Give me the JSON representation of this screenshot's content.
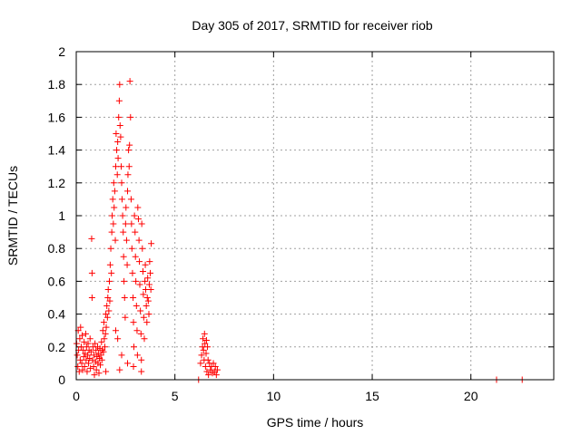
{
  "chart_data": {
    "type": "scatter",
    "title": "Day 305 of 2017, SRMTID for receiver riob",
    "xlabel": "GPS time / hours",
    "ylabel": "SRMTID / TECUs",
    "xlim": [
      0,
      24.2
    ],
    "ylim": [
      0,
      2
    ],
    "xticks": [
      0,
      5,
      10,
      15,
      20
    ],
    "xtick_labels": [
      "0",
      "5",
      "10",
      "15",
      "20"
    ],
    "yticks": [
      0,
      0.2,
      0.4,
      0.6,
      0.8,
      1,
      1.2,
      1.4,
      1.6,
      1.8,
      2
    ],
    "ytick_labels": [
      "0",
      "0.2",
      "0.4",
      "0.6",
      "0.8",
      "1",
      "1.2",
      "1.4",
      "1.6",
      "1.8",
      "2"
    ],
    "grid": true,
    "marker": "plus",
    "color": "#ff0000",
    "series": [
      {
        "name": "SRMTID",
        "points": [
          [
            0.02,
            0.22
          ],
          [
            0.05,
            0.15
          ],
          [
            0.08,
            0.08
          ],
          [
            0.1,
            0.3
          ],
          [
            0.12,
            0.18
          ],
          [
            0.15,
            0.05
          ],
          [
            0.18,
            0.25
          ],
          [
            0.2,
            0.12
          ],
          [
            0.22,
            0.32
          ],
          [
            0.25,
            0.2
          ],
          [
            0.28,
            0.1
          ],
          [
            0.3,
            0.27
          ],
          [
            0.32,
            0.06
          ],
          [
            0.35,
            0.18
          ],
          [
            0.38,
            0.14
          ],
          [
            0.4,
            0.23
          ],
          [
            0.42,
            0.08
          ],
          [
            0.45,
            0.16
          ],
          [
            0.48,
            0.28
          ],
          [
            0.5,
            0.12
          ],
          [
            0.52,
            0.2
          ],
          [
            0.55,
            0.05
          ],
          [
            0.58,
            0.15
          ],
          [
            0.6,
            0.22
          ],
          [
            0.62,
            0.1
          ],
          [
            0.65,
            0.18
          ],
          [
            0.68,
            0.13
          ],
          [
            0.7,
            0.25
          ],
          [
            0.72,
            0.07
          ],
          [
            0.75,
            0.17
          ],
          [
            0.78,
            0.86
          ],
          [
            0.8,
            0.65
          ],
          [
            0.8,
            0.5
          ],
          [
            0.82,
            0.12
          ],
          [
            0.85,
            0.2
          ],
          [
            0.88,
            0.08
          ],
          [
            0.9,
            0.15
          ],
          [
            0.92,
            0.03
          ],
          [
            0.95,
            0.22
          ],
          [
            0.98,
            0.11
          ],
          [
            1.0,
            0.18
          ],
          [
            1.02,
            0.06
          ],
          [
            1.05,
            0.14
          ],
          [
            1.08,
            0.2
          ],
          [
            1.1,
            0.1
          ],
          [
            1.12,
            0.16
          ],
          [
            1.15,
            0.04
          ],
          [
            1.18,
            0.13
          ],
          [
            1.2,
            0.19
          ],
          [
            1.22,
            0.09
          ],
          [
            1.25,
            0.15
          ],
          [
            1.28,
            0.23
          ],
          [
            1.3,
            0.12
          ],
          [
            1.32,
            0.18
          ],
          [
            1.35,
            0.3
          ],
          [
            1.38,
            0.17
          ],
          [
            1.4,
            0.35
          ],
          [
            1.42,
            0.25
          ],
          [
            1.45,
            0.2
          ],
          [
            1.48,
            0.28
          ],
          [
            1.5,
            0.4
          ],
          [
            1.52,
            0.32
          ],
          [
            1.55,
            0.45
          ],
          [
            1.58,
            0.38
          ],
          [
            1.6,
            0.5
          ],
          [
            1.62,
            0.55
          ],
          [
            1.65,
            0.42
          ],
          [
            1.68,
            0.6
          ],
          [
            1.7,
            0.48
          ],
          [
            1.72,
            0.7
          ],
          [
            1.75,
            0.8
          ],
          [
            1.78,
            0.65
          ],
          [
            1.8,
            0.9
          ],
          [
            1.82,
            1.0
          ],
          [
            1.85,
            1.1
          ],
          [
            1.88,
            0.95
          ],
          [
            1.9,
            1.2
          ],
          [
            1.92,
            1.05
          ],
          [
            1.95,
            1.15
          ],
          [
            1.98,
            0.85
          ],
          [
            2.0,
            1.3
          ],
          [
            2.02,
            1.5
          ],
          [
            2.05,
            1.4
          ],
          [
            2.08,
            1.25
          ],
          [
            2.1,
            1.45
          ],
          [
            2.12,
            1.35
          ],
          [
            2.15,
            1.6
          ],
          [
            2.18,
            1.7
          ],
          [
            2.2,
            1.8
          ],
          [
            2.22,
            1.55
          ],
          [
            2.25,
            1.48
          ],
          [
            2.28,
            1.3
          ],
          [
            2.3,
            1.2
          ],
          [
            2.32,
            1.1
          ],
          [
            2.35,
            1.0
          ],
          [
            2.38,
            0.9
          ],
          [
            2.4,
            0.75
          ],
          [
            2.42,
            0.6
          ],
          [
            2.45,
            0.5
          ],
          [
            2.48,
            0.38
          ],
          [
            2.5,
            0.95
          ],
          [
            2.52,
            1.05
          ],
          [
            2.55,
            0.85
          ],
          [
            2.58,
            0.7
          ],
          [
            2.6,
            1.15
          ],
          [
            2.62,
            1.25
          ],
          [
            2.65,
            1.4
          ],
          [
            2.68,
            1.3
          ],
          [
            2.7,
            1.43
          ],
          [
            2.72,
            1.82
          ],
          [
            2.75,
            1.6
          ],
          [
            2.78,
            1.1
          ],
          [
            2.8,
            0.95
          ],
          [
            2.82,
            0.8
          ],
          [
            2.85,
            0.65
          ],
          [
            2.88,
            0.5
          ],
          [
            2.9,
            0.35
          ],
          [
            2.92,
            0.2
          ],
          [
            2.95,
            1.0
          ],
          [
            2.98,
            0.9
          ],
          [
            3.0,
            0.75
          ],
          [
            3.02,
            0.6
          ],
          [
            3.05,
            0.45
          ],
          [
            3.08,
            0.3
          ],
          [
            3.1,
            0.15
          ],
          [
            3.12,
            1.05
          ],
          [
            3.15,
            0.98
          ],
          [
            3.18,
            0.85
          ],
          [
            3.2,
            0.72
          ],
          [
            3.22,
            0.58
          ],
          [
            3.25,
            0.42
          ],
          [
            3.28,
            0.28
          ],
          [
            3.3,
            0.12
          ],
          [
            3.32,
            0.95
          ],
          [
            3.35,
            0.8
          ],
          [
            3.38,
            0.66
          ],
          [
            3.4,
            0.52
          ],
          [
            3.42,
            0.38
          ],
          [
            3.45,
            0.25
          ],
          [
            3.48,
            0.6
          ],
          [
            3.5,
            0.7
          ],
          [
            3.52,
            0.55
          ],
          [
            3.55,
            0.45
          ],
          [
            3.58,
            0.35
          ],
          [
            3.6,
            0.5
          ],
          [
            3.62,
            0.62
          ],
          [
            3.65,
            0.48
          ],
          [
            3.68,
            0.4
          ],
          [
            3.7,
            0.58
          ],
          [
            3.72,
            0.72
          ],
          [
            3.75,
            0.65
          ],
          [
            3.78,
            0.55
          ],
          [
            3.8,
            0.83
          ],
          [
            2.0,
            0.3
          ],
          [
            2.1,
            0.25
          ],
          [
            2.3,
            0.15
          ],
          [
            2.6,
            0.1
          ],
          [
            2.9,
            0.08
          ],
          [
            3.3,
            0.05
          ],
          [
            1.5,
            0.05
          ],
          [
            2.2,
            0.06
          ],
          [
            6.3,
            0.1
          ],
          [
            6.35,
            0.15
          ],
          [
            6.4,
            0.2
          ],
          [
            6.42,
            0.25
          ],
          [
            6.45,
            0.18
          ],
          [
            6.48,
            0.12
          ],
          [
            6.5,
            0.28
          ],
          [
            6.52,
            0.22
          ],
          [
            6.55,
            0.08
          ],
          [
            6.58,
            0.16
          ],
          [
            6.6,
            0.24
          ],
          [
            6.62,
            0.05
          ],
          [
            6.65,
            0.2
          ],
          [
            6.68,
            0.12
          ],
          [
            6.7,
            0.03
          ],
          [
            6.75,
            0.1
          ],
          [
            6.8,
            0.06
          ],
          [
            6.85,
            0.08
          ],
          [
            6.9,
            0.04
          ],
          [
            6.95,
            0.1
          ],
          [
            7.0,
            0.05
          ],
          [
            7.05,
            0.08
          ],
          [
            7.1,
            0.03
          ],
          [
            7.15,
            0.06
          ],
          [
            6.2,
            0.0
          ],
          [
            21.3,
            0.0
          ],
          [
            22.6,
            0.0
          ]
        ]
      }
    ]
  }
}
